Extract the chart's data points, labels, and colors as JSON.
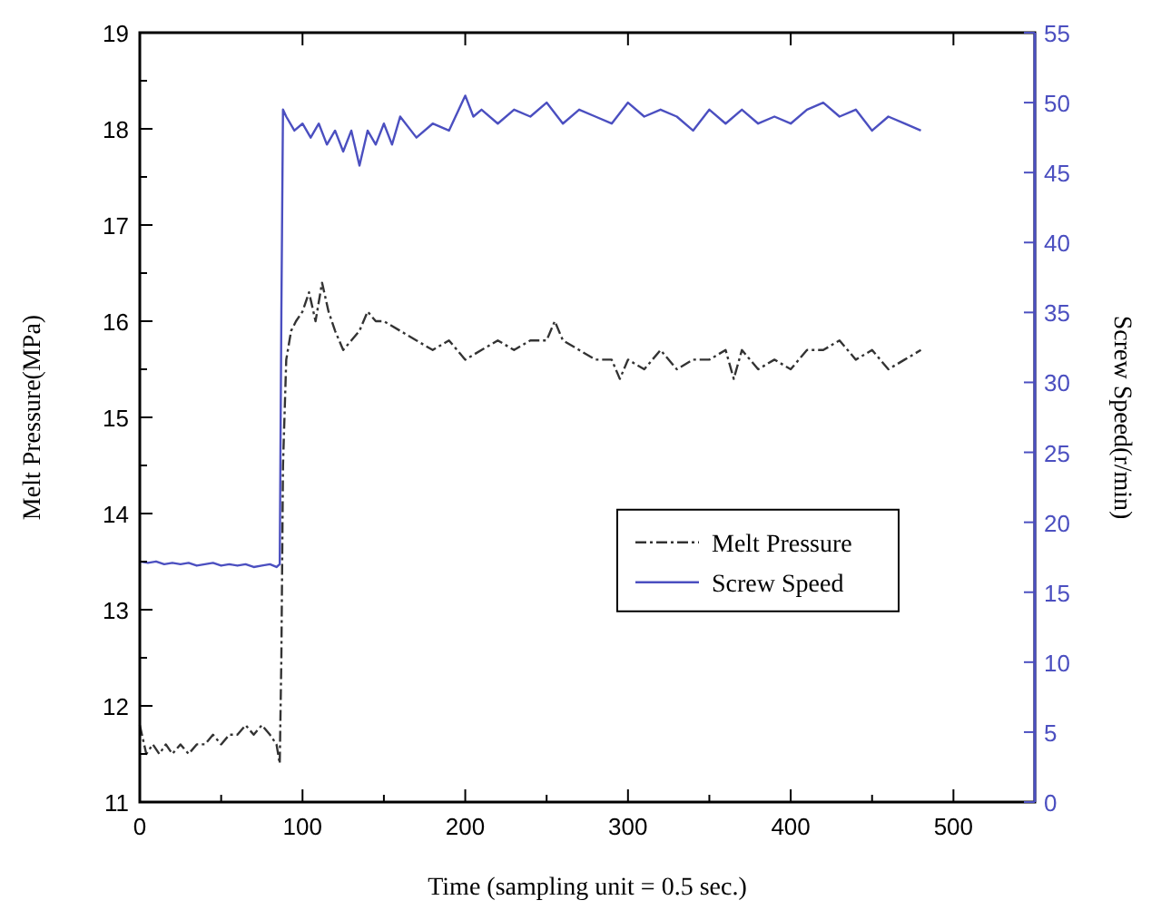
{
  "chart_data": {
    "type": "line",
    "xlabel": "Time (sampling unit = 0.5 sec.)",
    "ylabel": "Melt Pressure(MPa)",
    "y2label": "Screw Speed(r/min)",
    "xlim": [
      0,
      550
    ],
    "xticks": [
      0,
      100,
      200,
      300,
      400,
      500
    ],
    "ylim": [
      11,
      19
    ],
    "yticks": [
      11,
      12,
      13,
      14,
      15,
      16,
      17,
      18,
      19
    ],
    "y2lim": [
      0,
      55
    ],
    "y2ticks": [
      0,
      5,
      10,
      15,
      20,
      25,
      30,
      35,
      40,
      45,
      50,
      55
    ],
    "legend": "right",
    "grid": false,
    "series": [
      {
        "name": "Melt Pressure",
        "color": "#333333",
        "line_style": "dashed",
        "x": [
          0,
          4,
          8,
          12,
          16,
          20,
          25,
          30,
          35,
          40,
          45,
          50,
          55,
          60,
          65,
          70,
          75,
          80,
          84,
          86,
          87,
          88,
          90,
          93,
          96,
          100,
          104,
          108,
          112,
          116,
          120,
          125,
          130,
          135,
          140,
          145,
          150,
          160,
          170,
          180,
          190,
          200,
          210,
          220,
          230,
          240,
          250,
          255,
          260,
          270,
          280,
          290,
          295,
          300,
          310,
          320,
          330,
          340,
          350,
          360,
          365,
          370,
          380,
          390,
          400,
          410,
          420,
          430,
          440,
          450,
          460,
          470,
          480
        ],
        "values": [
          11.8,
          11.5,
          11.6,
          11.5,
          11.6,
          11.5,
          11.6,
          11.5,
          11.6,
          11.6,
          11.7,
          11.6,
          11.7,
          11.7,
          11.8,
          11.7,
          11.8,
          11.7,
          11.6,
          11.4,
          12.5,
          14.5,
          15.6,
          15.9,
          16.0,
          16.1,
          16.3,
          16.0,
          16.4,
          16.1,
          15.9,
          15.7,
          15.8,
          15.9,
          16.1,
          16.0,
          16.0,
          15.9,
          15.8,
          15.7,
          15.8,
          15.6,
          15.7,
          15.8,
          15.7,
          15.8,
          15.8,
          16.0,
          15.8,
          15.7,
          15.6,
          15.6,
          15.4,
          15.6,
          15.5,
          15.7,
          15.5,
          15.6,
          15.6,
          15.7,
          15.4,
          15.7,
          15.5,
          15.6,
          15.5,
          15.7,
          15.7,
          15.8,
          15.6,
          15.7,
          15.5,
          15.6,
          15.7
        ]
      },
      {
        "name": "Screw Speed",
        "color": "#4b4fc0",
        "line_style": "solid",
        "axis": "y2",
        "x": [
          0,
          5,
          10,
          15,
          20,
          25,
          30,
          35,
          40,
          45,
          50,
          55,
          60,
          65,
          70,
          75,
          80,
          84,
          86,
          87,
          88,
          90,
          95,
          100,
          105,
          110,
          115,
          120,
          125,
          130,
          135,
          140,
          145,
          150,
          155,
          160,
          170,
          180,
          190,
          200,
          205,
          210,
          220,
          230,
          240,
          250,
          260,
          270,
          280,
          290,
          300,
          310,
          320,
          330,
          340,
          350,
          360,
          370,
          380,
          390,
          400,
          410,
          420,
          430,
          440,
          450,
          460,
          470,
          480
        ],
        "values": [
          17.2,
          17.1,
          17.2,
          17.0,
          17.1,
          17.0,
          17.1,
          16.9,
          17.0,
          17.1,
          16.9,
          17.0,
          16.9,
          17.0,
          16.8,
          16.9,
          17.0,
          16.8,
          17.0,
          35,
          49.5,
          49,
          48,
          48.5,
          47.5,
          48.5,
          47,
          48,
          46.5,
          48,
          45.5,
          48,
          47,
          48.5,
          47,
          49,
          47.5,
          48.5,
          48,
          50.5,
          49,
          49.5,
          48.5,
          49.5,
          49,
          50,
          48.5,
          49.5,
          49,
          48.5,
          50,
          49,
          49.5,
          49,
          48,
          49.5,
          48.5,
          49.5,
          48.5,
          49,
          48.5,
          49.5,
          50,
          49,
          49.5,
          48,
          49,
          48.5,
          48
        ]
      }
    ]
  }
}
